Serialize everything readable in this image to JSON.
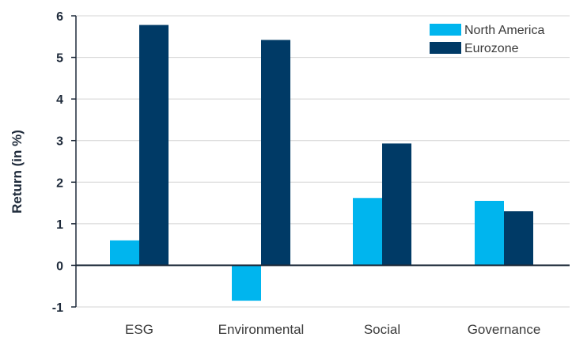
{
  "chart_data": {
    "type": "bar",
    "categories": [
      "ESG",
      "Environmental",
      "Social",
      "Governance"
    ],
    "series": [
      {
        "name": "North America",
        "values": [
          0.6,
          -0.85,
          1.62,
          1.55
        ],
        "color": "#00b5ee"
      },
      {
        "name": "Eurozone",
        "values": [
          5.78,
          5.42,
          2.93,
          1.3
        ],
        "color": "#003a66"
      }
    ],
    "title": "",
    "xlabel": "",
    "ylabel": "Return (in %)",
    "ylim": [
      -1,
      6
    ],
    "yticks": [
      "-1",
      "0",
      "1",
      "2",
      "3",
      "4",
      "5",
      "6"
    ],
    "grid": true,
    "legend_position": "top-right"
  }
}
